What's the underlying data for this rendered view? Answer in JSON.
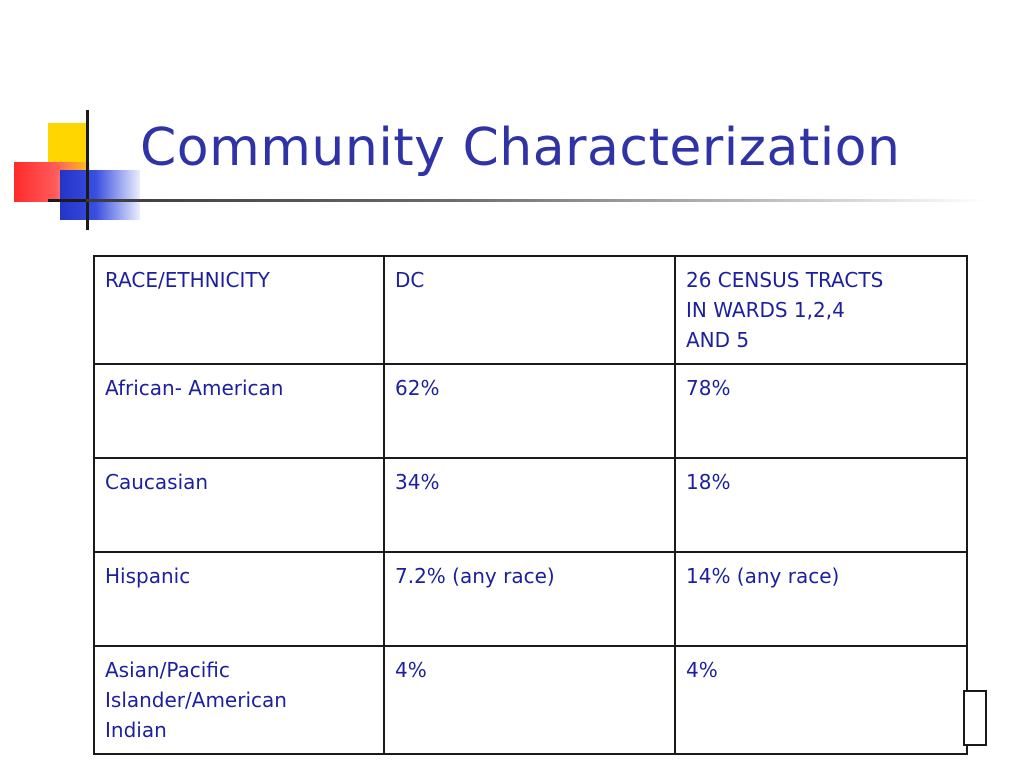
{
  "slide": {
    "title": "Community Characterization"
  },
  "table": {
    "headers": [
      "RACE/ETHNICITY",
      "DC",
      "26 CENSUS TRACTS\nIN WARDS 1,2,4\nAND 5"
    ],
    "rows": [
      [
        "African- American",
        "62%",
        "78%"
      ],
      [
        "Caucasian",
        "34%",
        "18%"
      ],
      [
        "Hispanic",
        "7.2% (any race)",
        "14% (any race)"
      ],
      [
        "Asian/Pacific\nIslander/American\nIndian",
        "4%",
        "4%"
      ]
    ]
  },
  "colors": {
    "title": "#2f33a6",
    "table_text": "#1c1f9e",
    "border": "#1a1a1a",
    "logo_yellow": "#ffd600",
    "logo_red": "#ff2a2a",
    "logo_blue": "#2433c8"
  }
}
